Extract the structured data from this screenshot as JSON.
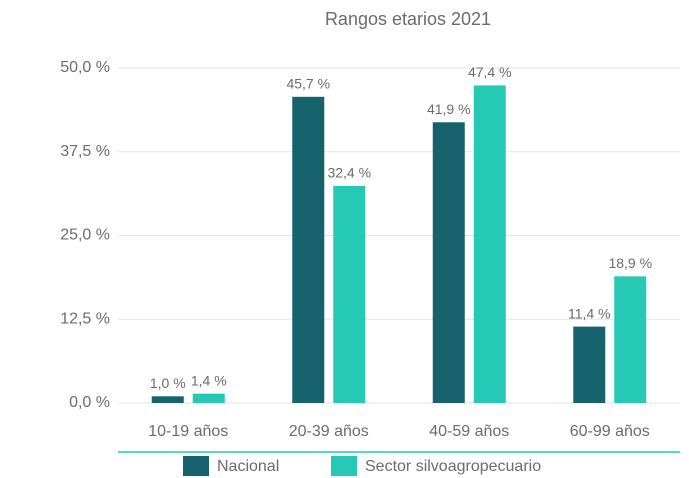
{
  "chart_data": {
    "type": "bar",
    "title": "Rangos etarios 2021",
    "categories": [
      "10-19 años",
      "20-39 años",
      "40-59 años",
      "60-99 años"
    ],
    "series": [
      {
        "name": "Nacional",
        "color": "#16636e",
        "values": [
          1.0,
          45.7,
          41.9,
          11.4
        ],
        "value_labels": [
          "1,0 %",
          "45,7 %",
          "41,9 %",
          "11,4 %"
        ]
      },
      {
        "name": "Sector silvoagropecuario",
        "color": "#26c9b4",
        "values": [
          1.4,
          32.4,
          47.4,
          18.9
        ],
        "value_labels": [
          "1,4 %",
          "32,4 %",
          "47,4 %",
          "18,9 %"
        ]
      }
    ],
    "ylim": [
      0,
      50
    ],
    "yticks": [
      {
        "value": 0,
        "label": "0,0 %"
      },
      {
        "value": 12.5,
        "label": "12,5 %"
      },
      {
        "value": 25,
        "label": "25,0 %"
      },
      {
        "value": 37.5,
        "label": "37,5 %"
      },
      {
        "value": 50,
        "label": "50,0 %"
      }
    ],
    "grid": true,
    "legend": "bottom"
  }
}
